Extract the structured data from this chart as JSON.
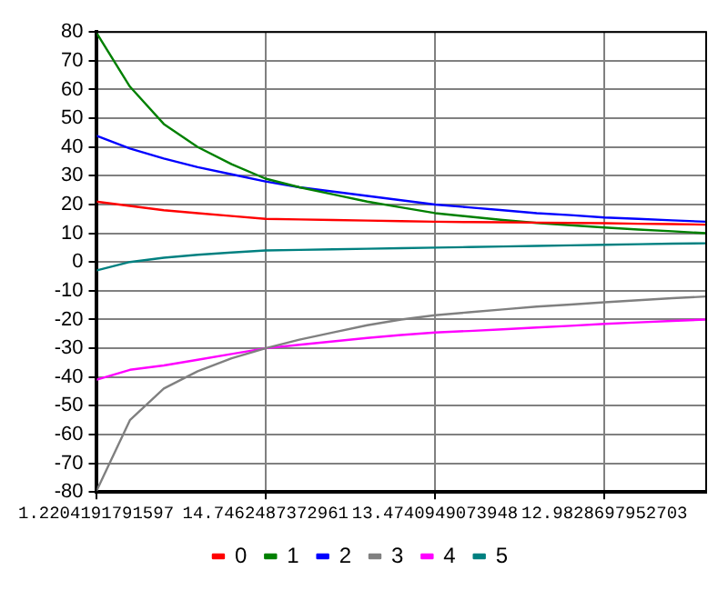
{
  "chart_data": {
    "type": "line",
    "categories": [
      "1.2204191791597",
      null,
      null,
      null,
      null,
      "14.7462487372961",
      null,
      null,
      null,
      null,
      "13.4740949073948",
      null,
      null,
      null,
      null,
      "12.9828697952703",
      null,
      null,
      null
    ],
    "series": [
      {
        "name": "0",
        "color": "#ff0000",
        "values": [
          21,
          19.5,
          18,
          17,
          16,
          15,
          14.8,
          14.6,
          14.4,
          14.2,
          14,
          13.9,
          13.8,
          13.7,
          13.6,
          13.5,
          13.3,
          13.2,
          13
        ]
      },
      {
        "name": "1",
        "color": "#008000",
        "values": [
          80,
          61,
          48,
          40,
          34,
          29,
          26,
          23.5,
          21,
          19,
          17,
          15.8,
          14.6,
          13.6,
          12.8,
          12,
          11.3,
          10.7,
          10
        ]
      },
      {
        "name": "2",
        "color": "#0000ff",
        "values": [
          44,
          39.5,
          36,
          33,
          30.5,
          28,
          26,
          24.5,
          23,
          21.5,
          20,
          19,
          18,
          17,
          16.3,
          15.5,
          15,
          14.5,
          14
        ]
      },
      {
        "name": "3",
        "color": "#808080",
        "values": [
          -80,
          -55,
          -44,
          -38,
          -33.5,
          -30,
          -27,
          -24.5,
          -22,
          -20,
          -18.5,
          -17.5,
          -16.5,
          -15.5,
          -14.8,
          -14,
          -13.3,
          -12.6,
          -12
        ]
      },
      {
        "name": "4",
        "color": "#ff00ff",
        "values": [
          -41,
          -37.5,
          -36,
          -34,
          -32,
          -30,
          -28.8,
          -27.6,
          -26.4,
          -25.4,
          -24.5,
          -24,
          -23.4,
          -22.8,
          -22.2,
          -21.5,
          -21,
          -20.5,
          -20
        ]
      },
      {
        "name": "5",
        "color": "#008080",
        "values": [
          -3,
          0,
          1.5,
          2.5,
          3.3,
          4,
          4.2,
          4.4,
          4.6,
          4.8,
          5,
          5.2,
          5.4,
          5.6,
          5.8,
          6,
          6.2,
          6.4,
          6.5
        ]
      }
    ],
    "ylim": [
      -80,
      80
    ],
    "yticks": [
      -80,
      -70,
      -60,
      -50,
      -40,
      -30,
      -20,
      -10,
      0,
      10,
      20,
      30,
      40,
      50,
      60,
      70,
      80
    ],
    "grid": true,
    "legend": "bottom",
    "marker": "none",
    "line_style": "solid"
  }
}
